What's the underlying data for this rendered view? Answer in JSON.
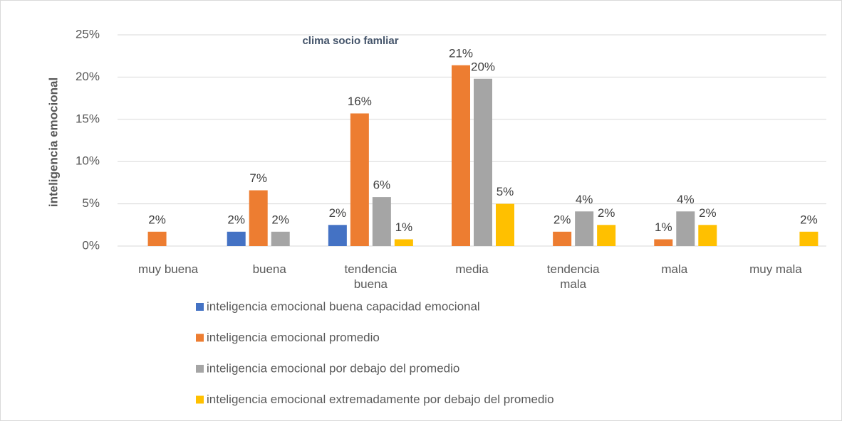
{
  "chart_data": {
    "type": "bar",
    "title": "clima socio famliar",
    "y_label": "inteligencia emocional",
    "categories": [
      "muy buena",
      "buena",
      "tendencia buena",
      "media",
      "tendencia mala",
      "mala",
      "muy mala"
    ],
    "series": [
      {
        "name": "inteligencia emocional buena capacidad emocional",
        "color": "#4472c4",
        "values": [
          null,
          1.7,
          2.5,
          null,
          null,
          null,
          null
        ],
        "value_labels": [
          null,
          "2%",
          "2%",
          null,
          null,
          null,
          null
        ]
      },
      {
        "name": "inteligencia emocional promedio",
        "color": "#ed7d31",
        "values": [
          1.7,
          6.6,
          15.7,
          21.4,
          1.7,
          0.8,
          null
        ],
        "value_labels": [
          "2%",
          "7%",
          "16%",
          "21%",
          "2%",
          "1%",
          null
        ]
      },
      {
        "name": "inteligencia emocional por debajo del promedio",
        "color": "#a5a5a5",
        "values": [
          null,
          1.7,
          5.8,
          19.8,
          4.1,
          4.1,
          null
        ],
        "value_labels": [
          null,
          "2%",
          "6%",
          "20%",
          "4%",
          "4%",
          null
        ]
      },
      {
        "name": "inteligencia emocional extremadamente por debajo del promedio",
        "color": "#ffc000",
        "values": [
          null,
          null,
          0.8,
          5.0,
          2.5,
          2.5,
          1.7
        ],
        "value_labels": [
          null,
          null,
          "1%",
          "5%",
          "2%",
          "2%",
          "2%"
        ]
      }
    ],
    "ylim": [
      0,
      25
    ],
    "yticks": [
      {
        "value": 0,
        "label": "0%"
      },
      {
        "value": 5,
        "label": "5%"
      },
      {
        "value": 10,
        "label": "10%"
      },
      {
        "value": 15,
        "label": "15%"
      },
      {
        "value": 20,
        "label": "20%"
      },
      {
        "value": 25,
        "label": "25%"
      }
    ],
    "grid": true,
    "legend": "bottom"
  }
}
